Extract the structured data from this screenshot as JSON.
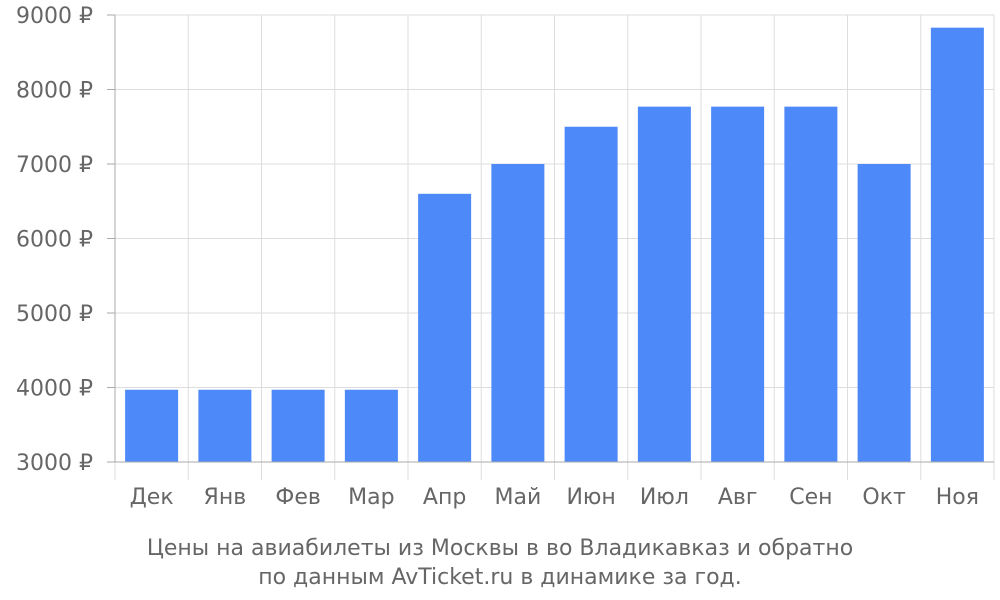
{
  "chart_data": {
    "type": "bar",
    "categories": [
      "Дек",
      "Янв",
      "Фев",
      "Мар",
      "Апр",
      "Май",
      "Июн",
      "Июл",
      "Авг",
      "Сен",
      "Окт",
      "Ноя"
    ],
    "values": [
      3970,
      3970,
      3970,
      3970,
      6600,
      7000,
      7500,
      7770,
      7770,
      7770,
      7000,
      8830
    ],
    "ylim": [
      3000,
      9000
    ],
    "yticks": [
      "3000 ₽",
      "4000 ₽",
      "5000 ₽",
      "6000 ₽",
      "7000 ₽",
      "8000 ₽",
      "9000 ₽"
    ],
    "grid": true,
    "bar_color": "#4d89f9",
    "grid_color": "#dddddd",
    "text_color": "#666666",
    "caption_lines": [
      "Цены на авиабилеты из Москвы в во Владикавказ и обратно",
      "по данным AvTicket.ru в динамике за год."
    ]
  }
}
